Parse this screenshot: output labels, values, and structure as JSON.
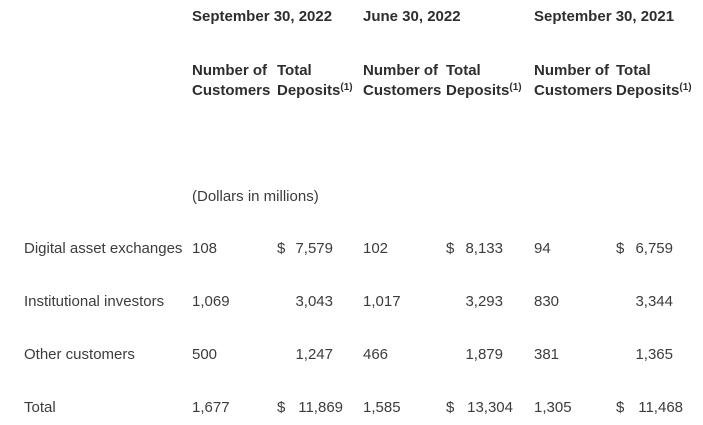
{
  "table": {
    "units_note": "(Dollars in millions)",
    "columns": {
      "dates": [
        "September 30, 2022",
        "June 30, 2022",
        "September 30, 2021"
      ],
      "customers_header": "Number of Customers",
      "deposits_header_line1": "Total",
      "deposits_header_line2": "Deposits",
      "deposits_footnote": "(1)"
    },
    "rows": [
      {
        "label": "Digital asset exchanges",
        "g1": {
          "customers": "108",
          "currency": "$",
          "deposits": "7,579"
        },
        "g2": {
          "customers": "102",
          "currency": "$",
          "deposits": "8,133"
        },
        "g3": {
          "customers": "94",
          "currency": "$",
          "deposits": "6,759"
        }
      },
      {
        "label": "Institutional investors",
        "g1": {
          "customers": "1,069",
          "currency": "",
          "deposits": "3,043"
        },
        "g2": {
          "customers": "1,017",
          "currency": "",
          "deposits": "3,293"
        },
        "g3": {
          "customers": "830",
          "currency": "",
          "deposits": "3,344"
        }
      },
      {
        "label": "Other customers",
        "g1": {
          "customers": "500",
          "currency": "",
          "deposits": "1,247"
        },
        "g2": {
          "customers": "466",
          "currency": "",
          "deposits": "1,879"
        },
        "g3": {
          "customers": "381",
          "currency": "",
          "deposits": "1,365"
        }
      },
      {
        "label": "Total",
        "g1": {
          "customers": "1,677",
          "currency": "$",
          "deposits": "11,869"
        },
        "g2": {
          "customers": "1,585",
          "currency": "$",
          "deposits": "13,304"
        },
        "g3": {
          "customers": "1,305",
          "currency": "$",
          "deposits": "11,468"
        }
      }
    ],
    "colors": {
      "background": "#ffffff",
      "body_text": "#3c3c3c",
      "header_text": "#2e2e2e"
    }
  }
}
